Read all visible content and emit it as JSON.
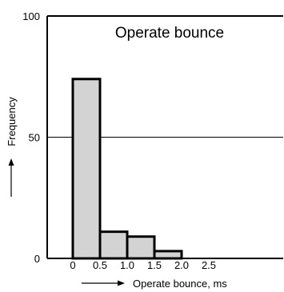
{
  "chart_data": {
    "type": "bar",
    "title": "Operate bounce",
    "xlabel": "Operate bounce, ms",
    "ylabel": "Frequency",
    "ylim": [
      0,
      100
    ],
    "yticks": [
      "0",
      "50",
      "100"
    ],
    "xticks": [
      "0",
      "0.5",
      "1.0",
      "1.5",
      "2.0",
      "2.5"
    ],
    "bin_edges": [
      0,
      0.5,
      1.0,
      1.5,
      2.0
    ],
    "values": [
      74,
      11,
      9,
      3
    ],
    "gridline_y": 50,
    "bar_color": "#d3d3d3",
    "grid": false
  }
}
